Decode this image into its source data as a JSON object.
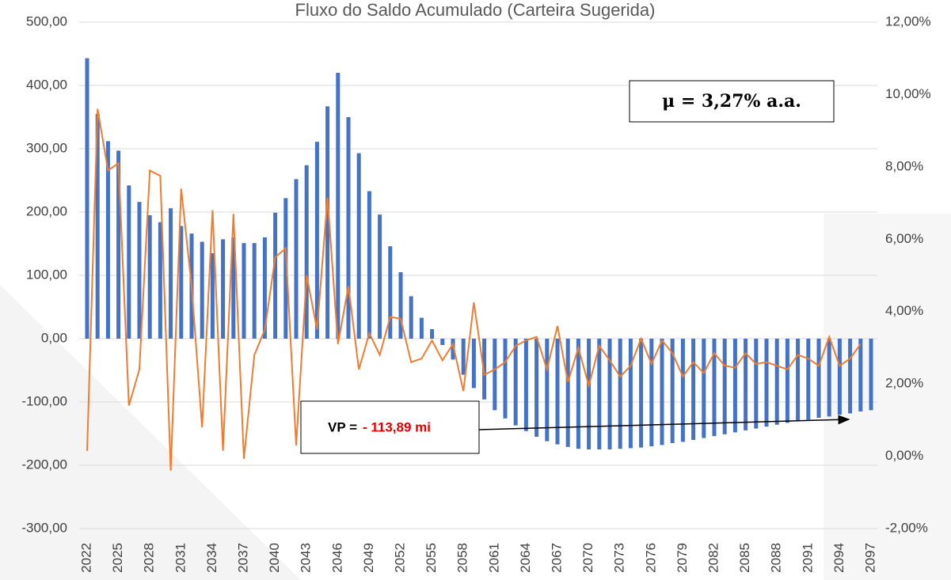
{
  "chart_data": {
    "type": "bar-line",
    "title": "Fluxo do Saldo Acumulado (Carteira Sugerida)",
    "mu_label": "μ = 3,27% a.a.",
    "vp_label": "VP =",
    "vp_value": "- 113,89 mi",
    "categories": [
      "2022",
      null,
      null,
      "2025",
      null,
      null,
      "2028",
      null,
      null,
      "2031",
      null,
      null,
      "2034",
      null,
      null,
      "2037",
      null,
      null,
      "2040",
      null,
      null,
      "2043",
      null,
      null,
      "2046",
      null,
      null,
      "2049",
      null,
      null,
      "2052",
      null,
      null,
      "2055",
      null,
      null,
      "2058",
      null,
      null,
      "2061",
      null,
      null,
      "2064",
      null,
      null,
      "2067",
      null,
      null,
      "2070",
      null,
      null,
      "2073",
      null,
      null,
      "2076",
      null,
      null,
      "2079",
      null,
      null,
      "2082",
      null,
      null,
      "2085",
      null,
      null,
      "2088",
      null,
      null,
      "2091",
      null,
      null,
      "2094",
      null,
      null,
      "2097"
    ],
    "series": [
      {
        "color": "#4472c4",
        "values": [
          443,
          355,
          312,
          297,
          242,
          216,
          195,
          184,
          206,
          178,
          166,
          153,
          135,
          157,
          160,
          151,
          151,
          160,
          199,
          222,
          252,
          274,
          311,
          367,
          420,
          350,
          293,
          233,
          196,
          146,
          105,
          67,
          33,
          15,
          -10,
          -33,
          -57,
          -78,
          -96,
          -113,
          -126,
          -137,
          -146,
          -155,
          -162,
          -167,
          -171,
          -174,
          -175,
          -175,
          -175,
          -174,
          -173,
          -172,
          -170,
          -168,
          -165,
          -163,
          -160,
          -157,
          -154,
          -151,
          -148,
          -145,
          -142,
          -139,
          -136,
          -133,
          -130,
          -128,
          -125,
          -123,
          -120,
          -118,
          -115,
          -113
        ]
      },
      {
        "color": "#ed7d31",
        "axis": "y2",
        "values": [
          0.15,
          9.6,
          7.9,
          8.1,
          1.4,
          2.4,
          7.9,
          7.75,
          -0.4,
          7.4,
          4.7,
          0.8,
          6.8,
          0.15,
          6.7,
          -0.07,
          2.8,
          3.5,
          5.5,
          5.75,
          0.3,
          5.0,
          3.5,
          7.15,
          3.1,
          4.7,
          2.4,
          3.4,
          2.8,
          3.85,
          3.8,
          2.6,
          2.7,
          3.2,
          2.65,
          3.1,
          1.8,
          4.25,
          2.25,
          2.4,
          2.6,
          3.05,
          3.2,
          3.3,
          2.4,
          3.6,
          2.05,
          3.0,
          1.95,
          3.05,
          2.65,
          2.2,
          2.5,
          3.25,
          2.55,
          3.2,
          2.85,
          2.2,
          2.6,
          2.3,
          2.85,
          2.5,
          2.45,
          2.85,
          2.55,
          2.6,
          2.5,
          2.4,
          2.8,
          2.7,
          2.5,
          3.3,
          2.5,
          2.7,
          3.1,
          null
        ]
      }
    ],
    "ylim": [
      -300,
      500
    ],
    "yticks": [
      {
        "value": -300,
        "label": "-300,00"
      },
      {
        "value": -200,
        "label": "-200,00"
      },
      {
        "value": -100,
        "label": "-100,00"
      },
      {
        "value": 0,
        "label": "0,00"
      },
      {
        "value": 100,
        "label": "100,00"
      },
      {
        "value": 200,
        "label": "200,00"
      },
      {
        "value": 300,
        "label": "300,00"
      },
      {
        "value": 400,
        "label": "400,00"
      },
      {
        "value": 500,
        "label": "500,00"
      }
    ],
    "y2lim": [
      -2,
      12
    ],
    "y2ticks": [
      {
        "value": -2,
        "label": "-2,00%"
      },
      {
        "value": 0,
        "label": "0,00%"
      },
      {
        "value": 2,
        "label": "2,00%"
      },
      {
        "value": 4,
        "label": "4,00%"
      },
      {
        "value": 6,
        "label": "6,00%"
      },
      {
        "value": 8,
        "label": "8,00%"
      },
      {
        "value": 10,
        "label": "10,00%"
      },
      {
        "value": 12,
        "label": "12,00%"
      }
    ],
    "grid": true
  }
}
